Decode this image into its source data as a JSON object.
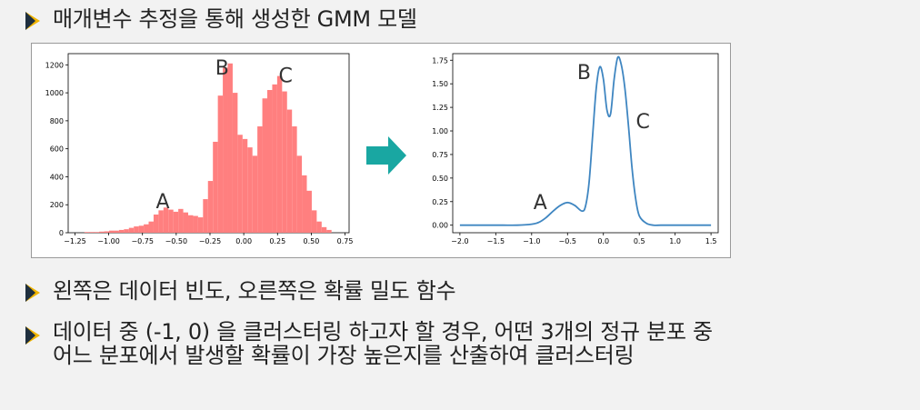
{
  "bullets": [
    {
      "text": "매개변수 추정을 통해 생성한 GMM 모델"
    },
    {
      "text": "왼쪽은 데이터 빈도, 오른쪽은 확률 밀도 함수"
    },
    {
      "line1": "데이터 중 (-1, 0) 을 클러스터링 하고자 할 경우, 어떤 3개의 정규 분포 중",
      "line2": "어느 분포에서 발생할 확률이 가장 높은지를 산출하여 클러스터링"
    }
  ],
  "arrow_color": "#19a7a2",
  "chart_data": [
    {
      "type": "bar",
      "subtype": "histogram",
      "bar_color": "#ff7f7f",
      "xlim": [
        -1.3,
        0.78
      ],
      "ylim": [
        0,
        1280
      ],
      "xticks": [
        -1.25,
        -1.0,
        -0.75,
        -0.5,
        -0.25,
        0.0,
        0.25,
        0.5,
        0.75
      ],
      "xtick_labels": [
        "−1.25",
        "−1.00",
        "−0.75",
        "−0.50",
        "−0.25",
        "0.00",
        "0.25",
        "0.50",
        "0.75"
      ],
      "yticks": [
        0,
        200,
        400,
        600,
        800,
        1000,
        1200
      ],
      "yticks_labels": [
        "0",
        "200",
        "400",
        "600",
        "800",
        "1000",
        "1200"
      ],
      "bin_start": -1.18,
      "bin_width": 0.0366,
      "values": [
        5,
        5,
        5,
        8,
        10,
        15,
        15,
        20,
        25,
        35,
        45,
        50,
        60,
        80,
        130,
        160,
        180,
        165,
        150,
        170,
        145,
        125,
        120,
        110,
        240,
        370,
        650,
        980,
        1180,
        1210,
        1000,
        700,
        670,
        610,
        550,
        760,
        960,
        1020,
        1060,
        1120,
        1010,
        880,
        760,
        550,
        410,
        300,
        160,
        80,
        40,
        20
      ],
      "annotations": [
        {
          "text": "A",
          "x": -0.6,
          "y": 175
        },
        {
          "text": "B",
          "x": -0.16,
          "y": 1130
        },
        {
          "text": "C",
          "x": 0.31,
          "y": 1075
        }
      ]
    },
    {
      "type": "line",
      "line_color": "#3f86c1",
      "xlim": [
        -2.1,
        1.6
      ],
      "ylim": [
        -0.08,
        1.82
      ],
      "xticks": [
        -2.0,
        -1.5,
        -1.0,
        -0.5,
        0.0,
        0.5,
        1.0,
        1.5
      ],
      "xtick_labels": [
        "−2.0",
        "−1.5",
        "−1.0",
        "−0.5",
        "0.0",
        "0.5",
        "1.0",
        "1.5"
      ],
      "yticks": [
        0.0,
        0.25,
        0.5,
        0.75,
        1.0,
        1.25,
        1.5,
        1.75
      ],
      "yticks_labels": [
        "0.00",
        "0.25",
        "0.50",
        "0.75",
        "1.00",
        "1.25",
        "1.50",
        "1.75"
      ],
      "x": [
        -2.0,
        -1.8,
        -1.6,
        -1.4,
        -1.2,
        -1.0,
        -0.9,
        -0.8,
        -0.7,
        -0.6,
        -0.5,
        -0.4,
        -0.3,
        -0.25,
        -0.2,
        -0.15,
        -0.1,
        -0.05,
        0.0,
        0.05,
        0.1,
        0.15,
        0.2,
        0.25,
        0.3,
        0.35,
        0.4,
        0.45,
        0.5,
        0.6,
        0.7,
        0.8,
        1.0,
        1.2,
        1.5
      ],
      "y": [
        0.0,
        0.0,
        0.0,
        0.0,
        0.0,
        0.01,
        0.03,
        0.08,
        0.15,
        0.21,
        0.24,
        0.21,
        0.15,
        0.2,
        0.45,
        0.95,
        1.45,
        1.68,
        1.55,
        1.22,
        1.18,
        1.55,
        1.78,
        1.7,
        1.45,
        1.05,
        0.6,
        0.28,
        0.1,
        0.02,
        0.0,
        0.0,
        0.0,
        0.0,
        0.0
      ],
      "annotations": [
        {
          "text": "A",
          "x": -0.88,
          "y": 0.17
        },
        {
          "text": "B",
          "x": -0.27,
          "y": 1.55
        },
        {
          "text": "C",
          "x": 0.55,
          "y": 1.03
        }
      ]
    }
  ]
}
